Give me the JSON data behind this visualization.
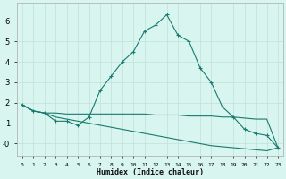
{
  "xlabel": "Humidex (Indice chaleur)",
  "background_color": "#d8f5f0",
  "grid_color": "#c0e0d8",
  "line_color": "#1a7a6e",
  "x_main": [
    0,
    1,
    2,
    3,
    4,
    5,
    6,
    7,
    8,
    9,
    10,
    11,
    12,
    13,
    14,
    15,
    16,
    17,
    18,
    19,
    20,
    21,
    22,
    23
  ],
  "y_main": [
    1.9,
    1.6,
    1.5,
    1.1,
    1.1,
    0.9,
    1.3,
    2.6,
    3.3,
    4.0,
    4.5,
    5.5,
    5.8,
    6.3,
    5.3,
    5.0,
    3.7,
    3.0,
    1.8,
    1.3,
    0.7,
    0.5,
    0.4,
    -0.2
  ],
  "x_flat1": [
    0,
    1,
    2,
    3,
    4,
    5,
    6,
    7,
    8,
    9,
    10,
    11,
    12,
    13,
    14,
    15,
    16,
    17,
    18,
    19,
    20,
    21,
    22,
    23
  ],
  "y_flat1": [
    1.9,
    1.6,
    1.5,
    1.5,
    1.45,
    1.45,
    1.45,
    1.45,
    1.45,
    1.45,
    1.45,
    1.45,
    1.4,
    1.4,
    1.4,
    1.35,
    1.35,
    1.35,
    1.3,
    1.3,
    1.25,
    1.2,
    1.2,
    -0.2
  ],
  "x_flat2": [
    0,
    1,
    2,
    3,
    4,
    5,
    6,
    7,
    8,
    9,
    10,
    11,
    12,
    13,
    14,
    15,
    16,
    17,
    18,
    19,
    20,
    21,
    22,
    23
  ],
  "y_flat2": [
    1.9,
    1.6,
    1.5,
    1.3,
    1.2,
    1.1,
    1.0,
    0.9,
    0.8,
    0.7,
    0.6,
    0.5,
    0.4,
    0.3,
    0.2,
    0.1,
    0.0,
    -0.1,
    -0.15,
    -0.2,
    -0.25,
    -0.3,
    -0.35,
    -0.2
  ],
  "ylim": [
    -0.6,
    6.9
  ],
  "xlim": [
    -0.5,
    23.5
  ],
  "yticks": [
    0,
    1,
    2,
    3,
    4,
    5,
    6
  ],
  "ytick_labels": [
    "-0",
    "1",
    "2",
    "3",
    "4",
    "5",
    "6"
  ],
  "xtick_labels": [
    "0",
    "1",
    "2",
    "3",
    "4",
    "5",
    "6",
    "7",
    "8",
    "9",
    "10",
    "11",
    "12",
    "13",
    "14",
    "15",
    "16",
    "17",
    "18",
    "19",
    "20",
    "21",
    "22",
    "23"
  ]
}
